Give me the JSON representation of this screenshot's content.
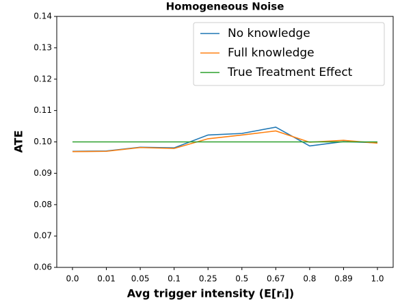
{
  "chart_data": {
    "type": "line",
    "title": "Homogeneous Noise",
    "xlabel": "Avg trigger intensity (E[rᵢ])",
    "ylabel": "ATE",
    "categories": [
      "0.0",
      "0.01",
      "0.05",
      "0.1",
      "0.25",
      "0.5",
      "0.67",
      "0.8",
      "0.89",
      "1.0"
    ],
    "series": [
      {
        "name": "No knowledge",
        "color": "#1f77b4",
        "values": [
          0.097,
          0.0971,
          0.0983,
          0.0981,
          0.1022,
          0.1027,
          0.1047,
          0.0987,
          0.1001,
          0.0997
        ]
      },
      {
        "name": "Full knowledge",
        "color": "#ff7f0e",
        "values": [
          0.0969,
          0.097,
          0.0982,
          0.0979,
          0.101,
          0.1022,
          0.1035,
          0.0999,
          0.1005,
          0.0996
        ]
      },
      {
        "name": "True Treatment Effect",
        "color": "#2ca02c",
        "values": [
          0.1,
          0.1,
          0.1,
          0.1,
          0.1,
          0.1,
          0.1,
          0.1,
          0.1,
          0.1
        ]
      }
    ],
    "ylim": [
      0.06,
      0.14
    ],
    "yticks": [
      0.06,
      0.07,
      0.08,
      0.09,
      {
        "value": 0.1,
        "label": "0.10"
      },
      0.11,
      0.12,
      0.13,
      0.14
    ],
    "legend": "upper right",
    "grid": false
  }
}
